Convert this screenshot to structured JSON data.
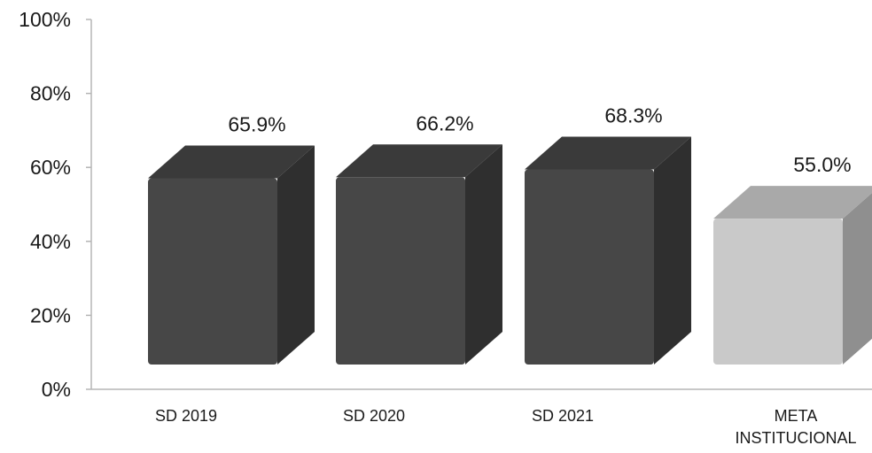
{
  "chart_data": {
    "type": "bar",
    "categories": [
      "SD 2019",
      "SD 2020",
      "SD 2021",
      "META INSTITUCIONAL"
    ],
    "values": [
      65.9,
      66.2,
      68.3,
      55.0
    ],
    "value_labels": [
      "65.9%",
      "66.2%",
      "68.3%",
      "55.0%"
    ],
    "title": "",
    "xlabel": "",
    "ylabel": "",
    "ylim": [
      0,
      100
    ],
    "y_ticks": [
      0,
      20,
      40,
      60,
      80,
      100
    ],
    "y_tick_labels": [
      "0%",
      "20%",
      "40%",
      "60%",
      "80%",
      "100%"
    ],
    "grid": false,
    "legend": "none",
    "style": "3d-column",
    "colors": {
      "dark_front": "#474747",
      "dark_top": "#3a3a3a",
      "dark_side": "#2f2f2f",
      "light_front": "#c9c9c9",
      "light_top": "#a9a9a9",
      "light_side": "#8f8f8f"
    },
    "bar_style": [
      "dark",
      "dark",
      "dark",
      "light"
    ]
  }
}
